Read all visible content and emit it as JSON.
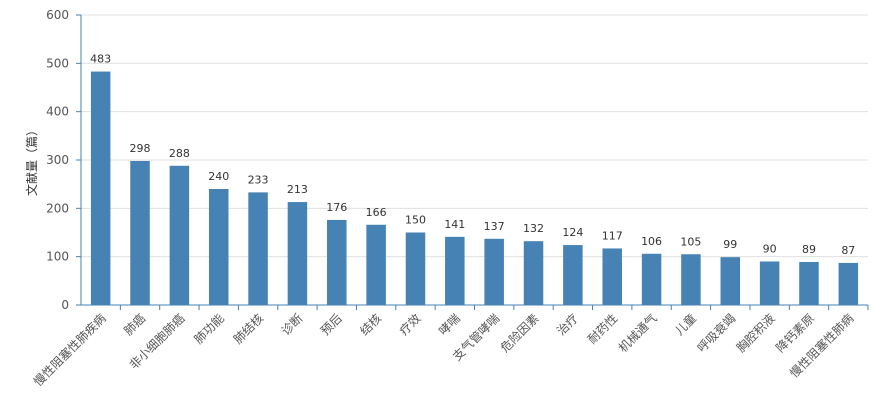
{
  "chart_data": {
    "type": "bar",
    "title": "",
    "xlabel": "",
    "ylabel": "文献量（篇）",
    "ylim": [
      0,
      600
    ],
    "yticks": [
      0,
      100,
      200,
      300,
      400,
      500,
      600
    ],
    "grid": true,
    "bar_color": "#4682b4",
    "categories": [
      "慢性阻塞性肺疾病",
      "肺癌",
      "非小细胞肺癌",
      "肺功能",
      "肺结核",
      "诊断",
      "预后",
      "结核",
      "疗效",
      "哮喘",
      "支气管哮喘",
      "危险因素",
      "治疗",
      "耐药性",
      "机械通气",
      "儿童",
      "呼吸衰竭",
      "胸腔积液",
      "降钙素原",
      "慢性阻塞性肺病"
    ],
    "values": [
      483,
      298,
      288,
      240,
      233,
      213,
      176,
      166,
      150,
      141,
      137,
      132,
      124,
      117,
      106,
      105,
      99,
      90,
      89,
      87
    ]
  }
}
